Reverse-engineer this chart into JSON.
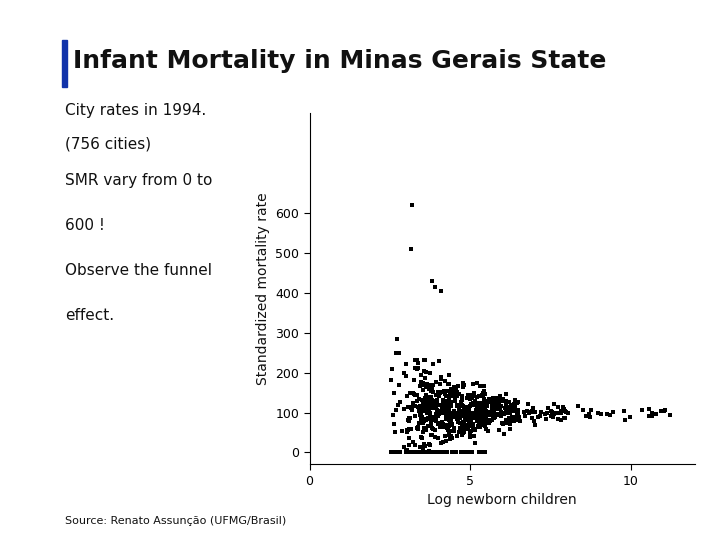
{
  "title": "Infant Mortality in Minas Gerais State",
  "subtitle_line1": "City rates in 1994.",
  "subtitle_line2": "(756 cities)",
  "left_text_line1": "SMR vary from 0 to",
  "left_text_line2": "600 !",
  "left_text_line3": "Observe the funnel",
  "left_text_line4": "effect.",
  "source_text": "Source: Renato Assunção (UFMG/Brasil)",
  "xlabel": "Log newborn children",
  "ylabel": "Standardized mortality rate",
  "xlim": [
    0,
    12
  ],
  "ylim": [
    -30,
    850
  ],
  "xticks": [
    0,
    5,
    10
  ],
  "yticks": [
    0,
    100,
    200,
    300,
    400,
    500,
    600
  ],
  "n_cities": 756,
  "seed": 42,
  "background_color": "#ffffff",
  "scatter_color": "#000000",
  "marker_size": 5,
  "sidebar_color": "#2244aa",
  "topbar_color": "#5577cc"
}
